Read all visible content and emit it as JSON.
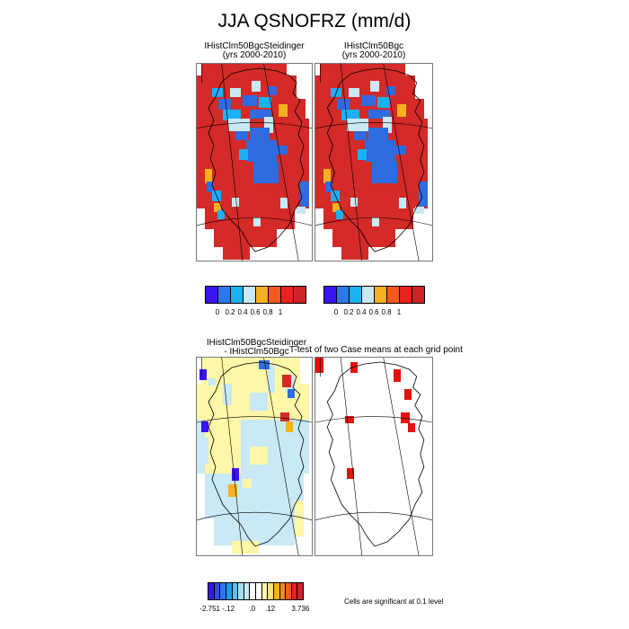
{
  "title": "JJA QSNOFRZ (mm/d)",
  "panels": {
    "a": {
      "line1": "IHistClm50BgcSteidinger",
      "line2": "(yrs 2000-2010)"
    },
    "b": {
      "line1": "IHistClm50Bgc",
      "line2": "(yrs 2000-2010)"
    },
    "diff": {
      "line1": "IHistClm50BgcSteidinger",
      "line2": "- IHistClm50Bgc"
    },
    "ttest": {
      "title": "T-test of two Case means at each grid point"
    }
  },
  "colorbar_top": {
    "colors": [
      "#3a14f0",
      "#2e78e6",
      "#1cb0f5",
      "#c8e9f5",
      "#f6b020",
      "#f55a1e",
      "#e8221c",
      "#cc2228"
    ],
    "tick_labels": [
      "0",
      "0.2",
      "0.4",
      "0.6",
      "0.8",
      "1"
    ]
  },
  "colorbar_bottom": {
    "colors": [
      "#3a14f0",
      "#2f4fe6",
      "#2e78e6",
      "#1c9cf0",
      "#58c0f0",
      "#a8dcf0",
      "#c8e9f5",
      "#ffffff",
      "#ffffff",
      "#fff6a8",
      "#fde080",
      "#f6b020",
      "#f58a1e",
      "#f55a1e",
      "#e8221c",
      "#cc2228"
    ],
    "tick_labels": [
      "-2.751",
      "-.12",
      ".0",
      ".12",
      "3.736"
    ]
  },
  "significance_note": "Cells are significant at 0.1 level",
  "map_colors": {
    "red": "#d42a28",
    "blue": "#2f6ce0",
    "cyan": "#1cb0f5",
    "lightblue": "#c8e9f5",
    "orange": "#f6b020",
    "darkorange": "#f55a1e",
    "purple": "#3a14f0",
    "paleyellow": "#fff6a8",
    "sigred": "#e8100c"
  }
}
